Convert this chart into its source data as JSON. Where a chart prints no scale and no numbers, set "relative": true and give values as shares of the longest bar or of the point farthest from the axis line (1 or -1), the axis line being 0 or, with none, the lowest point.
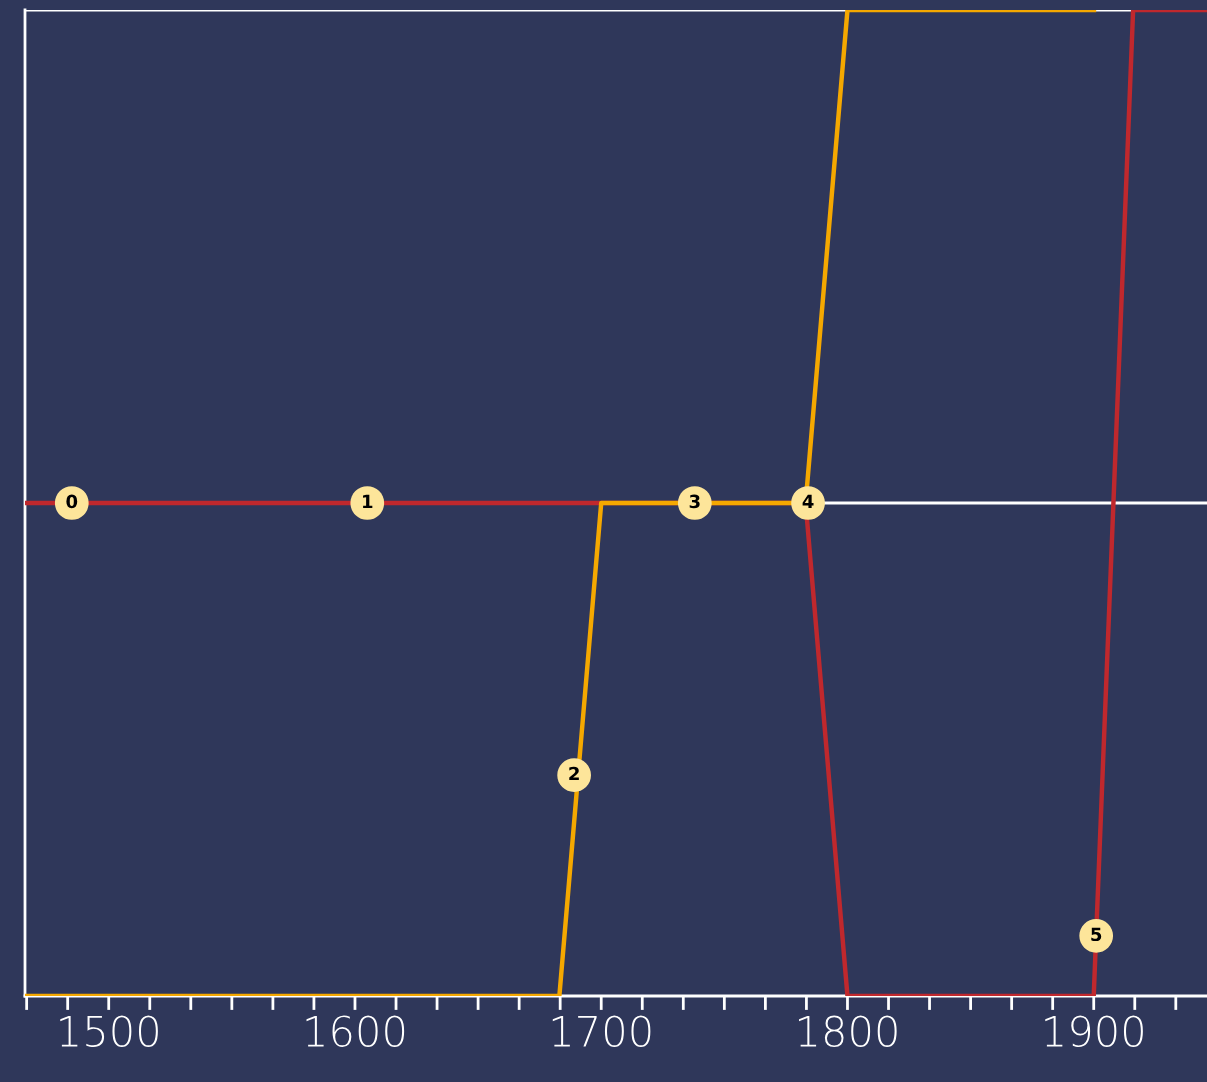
{
  "chart_data": {
    "type": "line",
    "relative": true,
    "tick_labels": "x",
    "xlim": [
      1466,
      1946
    ],
    "xticks": [
      {
        "value": 1466.67,
        "label": null
      },
      {
        "value": 1483.33,
        "label": null
      },
      1500,
      {
        "value": 1516.67,
        "label": null
      },
      {
        "value": 1533.33,
        "label": null
      },
      {
        "value": 1550,
        "label": null
      },
      {
        "value": 1566.67,
        "label": null
      },
      {
        "value": 1583.33,
        "label": null
      },
      1600,
      {
        "value": 1616.67,
        "label": null
      },
      {
        "value": 1633.33,
        "label": null
      },
      {
        "value": 1650,
        "label": null
      },
      {
        "value": 1666.67,
        "label": null
      },
      {
        "value": 1683.33,
        "label": null
      },
      1700,
      {
        "value": 1716.67,
        "label": null
      },
      {
        "value": 1733.33,
        "label": null
      },
      {
        "value": 1750,
        "label": null
      },
      {
        "value": 1766.67,
        "label": null
      },
      {
        "value": 1783.33,
        "label": null
      },
      1800,
      {
        "value": 1816.67,
        "label": null
      },
      {
        "value": 1833.33,
        "label": null
      },
      {
        "value": 1850,
        "label": null
      },
      {
        "value": 1866.67,
        "label": null
      },
      {
        "value": 1883.33,
        "label": null
      },
      1900,
      {
        "value": 1916.67,
        "label": null
      },
      {
        "value": 1933.33,
        "label": null
      }
    ],
    "series": [
      {
        "color": "#c0282d",
        "x": [
          1466,
          1783,
          1800,
          1900,
          1916,
          1946
        ],
        "values": [
          0.5,
          0.5,
          0,
          0,
          1,
          1
        ]
      },
      {
        "color": "#f5a800",
        "x": [
          1466,
          1683,
          1700,
          1783,
          1800,
          1901
        ],
        "values": [
          0,
          0,
          0.5,
          0.5,
          1,
          1
        ]
      }
    ],
    "ref_lines": [
      {
        "axis": "y",
        "value": 0.5,
        "color": "#ffffff"
      },
      {
        "axis": "y",
        "value": 1,
        "color": "#ffffff"
      }
    ],
    "annotations": [
      {
        "text": "0",
        "x": 1485,
        "y": 0.5
      },
      {
        "text": "1",
        "x": 1605,
        "y": 0.5
      },
      {
        "text": "2",
        "x": 1689,
        "y": 0.224
      },
      {
        "text": "3",
        "x": 1738,
        "y": 0.5
      },
      {
        "text": "4",
        "x": 1784,
        "y": 0.5
      },
      {
        "text": "5",
        "x": 1901,
        "y": 0.061
      }
    ]
  }
}
